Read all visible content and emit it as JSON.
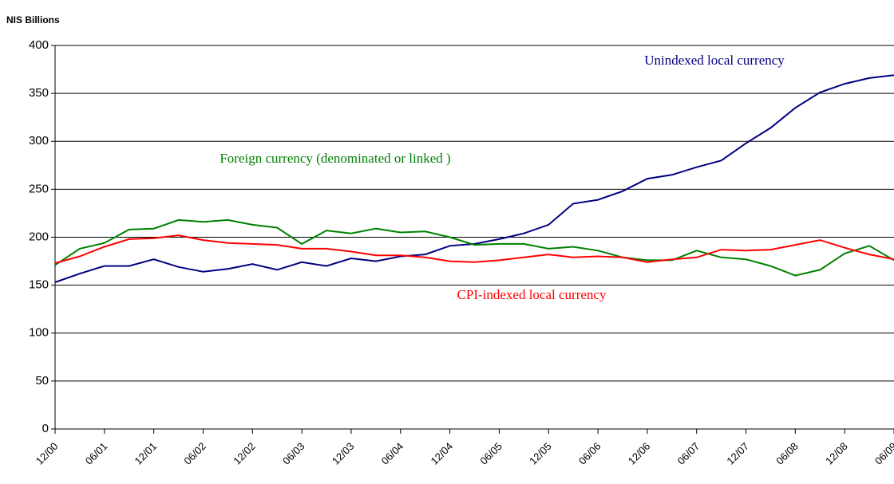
{
  "chart_data": {
    "type": "line",
    "y_axis_title": "NIS Billions",
    "categories": [
      "12/00",
      null,
      "06/01",
      null,
      "12/01",
      null,
      "06/02",
      null,
      "12/02",
      null,
      "06/03",
      null,
      "12/03",
      null,
      "06/04",
      null,
      "12/04",
      null,
      "06/05",
      null,
      "12/05",
      null,
      "06/06",
      null,
      "12/06",
      null,
      "06/07",
      null,
      "12/07",
      null,
      "06/08",
      null,
      "12/08",
      null,
      "06/09"
    ],
    "ylim": [
      0,
      400
    ],
    "yticks": [
      0,
      50,
      100,
      150,
      200,
      250,
      300,
      350,
      400
    ],
    "grid": true,
    "series": [
      {
        "name": "Unindexed local currency",
        "color": "#000080",
        "values": [
          153,
          162,
          170,
          170,
          177,
          169,
          164,
          167,
          172,
          166,
          174,
          170,
          178,
          175,
          180,
          182,
          191,
          193,
          198,
          204,
          213,
          235,
          239,
          248,
          261,
          265,
          273,
          280,
          298,
          314,
          335,
          351,
          360,
          366,
          369
        ]
      },
      {
        "name": "Foreign currency (denominated or linked )",
        "color": "#008000",
        "values": [
          171,
          188,
          194,
          208,
          209,
          218,
          216,
          218,
          213,
          210,
          193,
          207,
          204,
          209,
          205,
          206,
          200,
          192,
          193,
          193,
          188,
          190,
          186,
          179,
          176,
          176,
          186,
          179,
          177,
          170,
          160,
          166,
          183,
          191,
          176
        ]
      },
      {
        "name": "CPI-indexed local currency",
        "color": "#ff0000",
        "values": [
          173,
          180,
          190,
          198,
          199,
          202,
          197,
          194,
          193,
          192,
          188,
          188,
          185,
          181,
          181,
          179,
          175,
          174,
          176,
          179,
          182,
          179,
          180,
          179,
          174,
          177,
          179,
          187,
          186,
          187,
          192,
          197,
          189,
          182,
          177
        ]
      }
    ]
  }
}
